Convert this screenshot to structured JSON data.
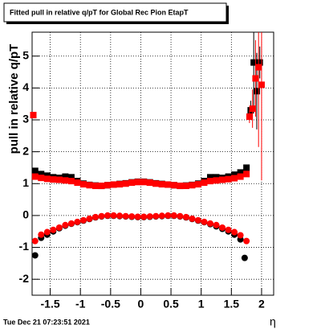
{
  "chart_data": {
    "type": "scatter",
    "title": "Fitted pull in relative q/pT for Global Rec Pion EtapT",
    "y_label": "pull in relative q/pT",
    "x_label": "η",
    "timestamp": "Tue Dec 21 07:23:51 2021",
    "xlim": [
      -1.8,
      2.2
    ],
    "ylim": [
      -2.5,
      5.75
    ],
    "xticks": [
      -1.5,
      -1,
      -0.5,
      0,
      0.5,
      1,
      1.5,
      2
    ],
    "yticks": [
      -2,
      -1,
      0,
      1,
      2,
      3,
      4,
      5
    ],
    "grid": true,
    "series": [
      {
        "color": "#000000",
        "marker": "square",
        "x": [
          -1.75,
          -1.65,
          -1.55,
          -1.45,
          -1.35,
          -1.25,
          -1.15,
          -1.05,
          -0.95,
          -0.85,
          -0.75,
          -0.65,
          -0.55,
          -0.45,
          -0.35,
          -0.25,
          -0.15,
          -0.05,
          0.05,
          0.15,
          0.25,
          0.35,
          0.45,
          0.55,
          0.65,
          0.75,
          0.85,
          0.95,
          1.05,
          1.15,
          1.25,
          1.35,
          1.45,
          1.55,
          1.65,
          1.75
        ],
        "values": [
          1.4,
          1.3,
          1.25,
          1.2,
          1.18,
          1.22,
          1.2,
          1.08,
          1.0,
          0.96,
          0.94,
          0.93,
          0.95,
          0.97,
          0.99,
          1.01,
          1.04,
          1.06,
          1.06,
          1.04,
          1.01,
          0.99,
          0.97,
          0.95,
          0.93,
          0.94,
          0.96,
          1.0,
          1.08,
          1.2,
          1.2,
          1.18,
          1.22,
          1.28,
          1.35,
          1.5
        ]
      },
      {
        "color": "#ff0000",
        "marker": "square",
        "x": [
          -1.75,
          -1.65,
          -1.55,
          -1.45,
          -1.35,
          -1.25,
          -1.15,
          -1.05,
          -0.95,
          -0.85,
          -0.75,
          -0.65,
          -0.55,
          -0.45,
          -0.35,
          -0.25,
          -0.15,
          -0.05,
          0.05,
          0.15,
          0.25,
          0.35,
          0.45,
          0.55,
          0.65,
          0.75,
          0.85,
          0.95,
          1.05,
          1.15,
          1.25,
          1.35,
          1.45,
          1.55,
          1.65,
          1.75
        ],
        "values": [
          1.22,
          1.18,
          1.15,
          1.13,
          1.12,
          1.1,
          1.08,
          1.03,
          0.98,
          0.95,
          0.93,
          0.93,
          0.95,
          0.97,
          0.98,
          1.0,
          1.03,
          1.05,
          1.05,
          1.03,
          1.0,
          0.98,
          0.97,
          0.95,
          0.93,
          0.93,
          0.95,
          0.98,
          1.03,
          1.08,
          1.1,
          1.12,
          1.14,
          1.17,
          1.22,
          1.3
        ]
      },
      {
        "color": "#000000",
        "marker": "circle",
        "x": [
          -1.75,
          -1.65,
          -1.55,
          -1.45,
          -1.35,
          -1.25,
          -1.15,
          -1.05,
          -0.95,
          -0.85,
          -0.75,
          -0.65,
          -0.55,
          -0.45,
          -0.35,
          -0.25,
          -0.15,
          -0.05,
          0.05,
          0.15,
          0.25,
          0.35,
          0.45,
          0.55,
          0.65,
          0.75,
          0.85,
          0.95,
          1.05,
          1.15,
          1.25,
          1.35,
          1.45,
          1.55,
          1.65,
          1.72
        ],
        "values": [
          -1.25,
          -0.7,
          -0.6,
          -0.5,
          -0.4,
          -0.32,
          -0.26,
          -0.21,
          -0.16,
          -0.11,
          -0.06,
          -0.03,
          -0.01,
          -0.01,
          -0.02,
          -0.03,
          -0.04,
          -0.05,
          -0.05,
          -0.04,
          -0.03,
          -0.02,
          -0.01,
          -0.01,
          -0.03,
          -0.06,
          -0.11,
          -0.16,
          -0.21,
          -0.27,
          -0.34,
          -0.42,
          -0.5,
          -0.6,
          -0.75,
          -1.33
        ]
      },
      {
        "color": "#ff0000",
        "marker": "circle",
        "x": [
          -1.75,
          -1.65,
          -1.55,
          -1.45,
          -1.35,
          -1.25,
          -1.15,
          -1.05,
          -0.95,
          -0.85,
          -0.75,
          -0.65,
          -0.55,
          -0.45,
          -0.35,
          -0.25,
          -0.15,
          -0.05,
          0.05,
          0.15,
          0.25,
          0.35,
          0.45,
          0.55,
          0.65,
          0.75,
          0.85,
          0.95,
          1.05,
          1.15,
          1.25,
          1.35,
          1.45,
          1.55,
          1.65,
          1.75
        ],
        "values": [
          -0.8,
          -0.6,
          -0.52,
          -0.45,
          -0.38,
          -0.3,
          -0.25,
          -0.2,
          -0.15,
          -0.1,
          -0.05,
          -0.02,
          0,
          0,
          -0.01,
          -0.02,
          -0.03,
          -0.04,
          -0.04,
          -0.03,
          -0.02,
          -0.01,
          0,
          0,
          -0.02,
          -0.05,
          -0.1,
          -0.15,
          -0.2,
          -0.25,
          -0.3,
          -0.38,
          -0.45,
          -0.52,
          -0.62,
          -0.8
        ]
      },
      {
        "color": "#000000",
        "marker": "square",
        "x": [
          1.82,
          1.87,
          1.92,
          1.97
        ],
        "values": [
          3.3,
          4.8,
          3.9,
          4.8
        ],
        "errors": [
          0.3,
          1.5,
          1.2,
          0.5
        ]
      },
      {
        "color": "#ff0000",
        "marker": "square",
        "x": [
          -1.78,
          1.8,
          1.85,
          1.9,
          1.95,
          2.0
        ],
        "values": [
          3.15,
          3.1,
          3.35,
          4.3,
          4.65,
          4.1
        ],
        "errors": [
          0,
          0.2,
          0.6,
          1.2,
          2.5,
          3.0
        ]
      }
    ]
  }
}
